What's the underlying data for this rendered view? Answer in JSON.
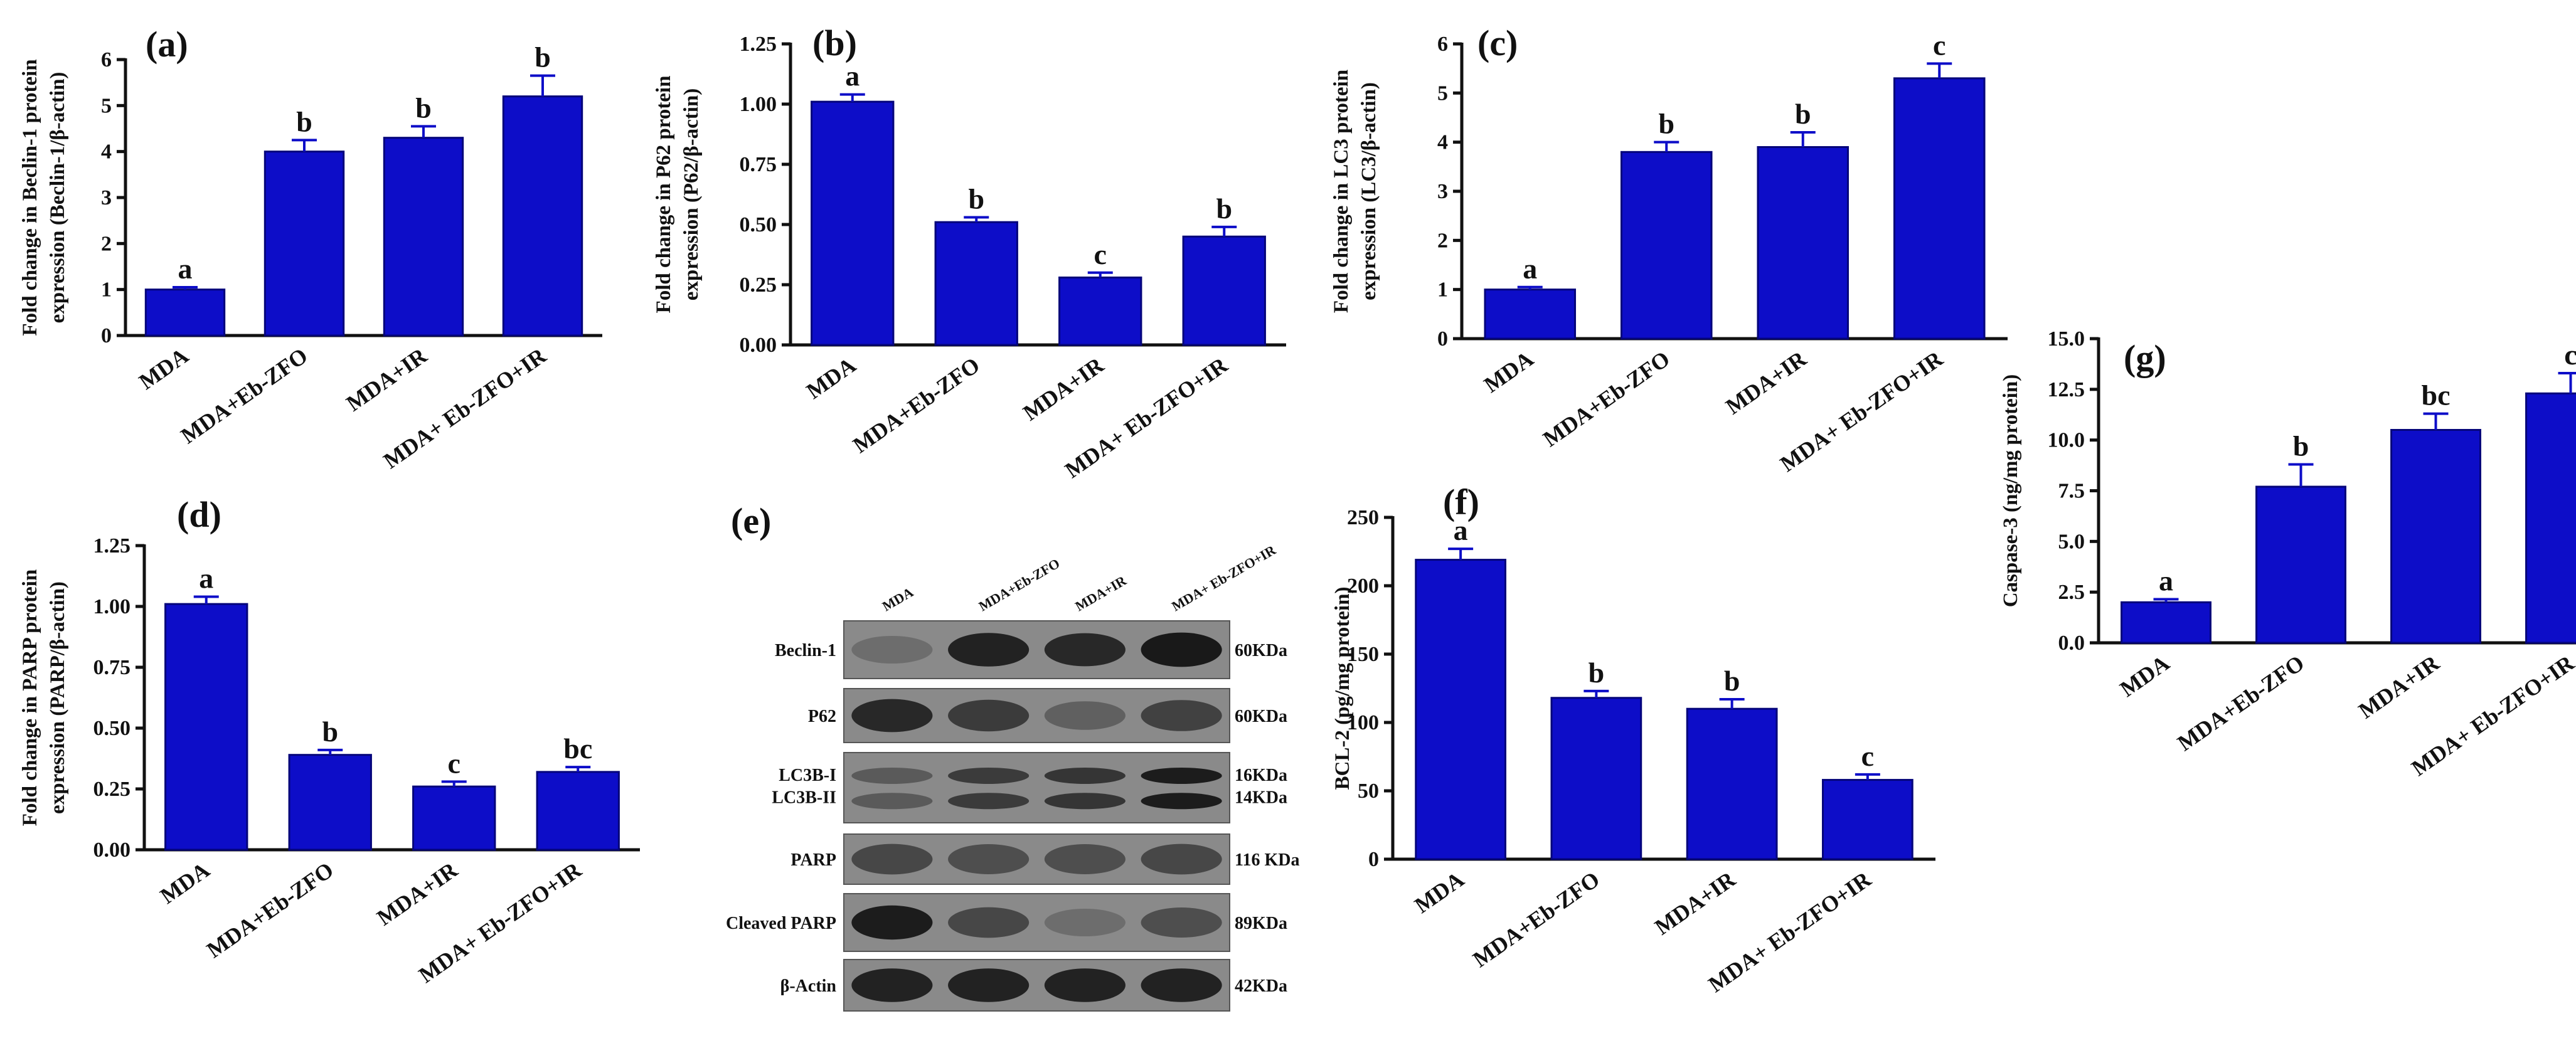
{
  "colors": {
    "bar": "#0d0dc8",
    "bar_edge": "#05057a",
    "axis": "#111111",
    "blot_bg": "#7f7f7f"
  },
  "chart_data": [
    {
      "panel": "(a)",
      "type": "bar",
      "categories": [
        "MDA",
        "MDA+Eb-ZFO",
        "MDA+IR",
        "MDA+ Eb-ZFO+IR"
      ],
      "values": [
        1.0,
        4.0,
        4.3,
        5.2
      ],
      "errors": [
        0.05,
        0.25,
        0.25,
        0.45
      ],
      "labels": [
        "a",
        "b",
        "b",
        "b"
      ],
      "ylabel": [
        "Fold change in Beclin-1 protein",
        "expression (Beclin-1/β-actin)"
      ],
      "ylim": [
        0,
        6
      ],
      "ticks": [
        "0",
        "1",
        "2",
        "3",
        "4",
        "5",
        "6"
      ]
    },
    {
      "panel": "(b)",
      "type": "bar",
      "categories": [
        "MDA",
        "MDA+Eb-ZFO",
        "MDA+IR",
        "MDA+ Eb-ZFO+IR"
      ],
      "values": [
        1.01,
        0.51,
        0.28,
        0.45
      ],
      "errors": [
        0.03,
        0.02,
        0.02,
        0.04
      ],
      "labels": [
        "a",
        "b",
        "c",
        "b"
      ],
      "ylabel": [
        "Fold change in P62 protein",
        "expression (P62/β-actin)"
      ],
      "ylim": [
        0,
        1.25
      ],
      "ticks": [
        "0.00",
        "0.25",
        "0.50",
        "0.75",
        "1.00",
        "1.25"
      ]
    },
    {
      "panel": "(c)",
      "type": "bar",
      "categories": [
        "MDA",
        "MDA+Eb-ZFO",
        "MDA+IR",
        "MDA+ Eb-ZFO+IR"
      ],
      "values": [
        1.0,
        3.8,
        3.9,
        5.3
      ],
      "errors": [
        0.05,
        0.2,
        0.3,
        0.3
      ],
      "labels": [
        "a",
        "b",
        "b",
        "c"
      ],
      "ylabel": [
        "Fold change in LC3 protein",
        "expression (LC3/β-actin)"
      ],
      "ylim": [
        0,
        6
      ],
      "ticks": [
        "0",
        "1",
        "2",
        "3",
        "4",
        "5",
        "6"
      ]
    },
    {
      "panel": "(d)",
      "type": "bar",
      "categories": [
        "MDA",
        "MDA+Eb-ZFO",
        "MDA+IR",
        "MDA+ Eb-ZFO+IR"
      ],
      "values": [
        1.01,
        0.39,
        0.26,
        0.32
      ],
      "errors": [
        0.03,
        0.02,
        0.02,
        0.02
      ],
      "labels": [
        "a",
        "b",
        "c",
        "bc"
      ],
      "ylabel": [
        "Fold change in PARP protein",
        "expression (PARP/β-actin)"
      ],
      "ylim": [
        0,
        1.25
      ],
      "ticks": [
        "0.00",
        "0.25",
        "0.50",
        "0.75",
        "1.00",
        "1.25"
      ]
    },
    {
      "panel": "(f)",
      "type": "bar",
      "categories": [
        "MDA",
        "MDA+Eb-ZFO",
        "MDA+IR",
        "MDA+ Eb-ZFO+IR"
      ],
      "values": [
        219,
        118,
        110,
        58
      ],
      "errors": [
        8,
        5,
        7,
        4
      ],
      "labels": [
        "a",
        "b",
        "b",
        "c"
      ],
      "ylabel": [
        "BCL-2 (pg/mg protein)"
      ],
      "ylim": [
        0,
        250
      ],
      "ticks": [
        "0",
        "50",
        "100",
        "150",
        "200",
        "250"
      ]
    },
    {
      "panel": "(g)",
      "type": "bar",
      "categories": [
        "MDA",
        "MDA+Eb-ZFO",
        "MDA+IR",
        "MDA+ Eb-ZFO+IR"
      ],
      "values": [
        2.0,
        7.7,
        10.5,
        12.3
      ],
      "errors": [
        0.15,
        1.1,
        0.8,
        1.0
      ],
      "labels": [
        "a",
        "b",
        "bc",
        "c"
      ],
      "ylabel": [
        "Caspase-3 (ng/mg protein)"
      ],
      "ylim": [
        0,
        15
      ],
      "ticks": [
        "0.0",
        "2.5",
        "5.0",
        "7.5",
        "10.0",
        "12.5",
        "15.0"
      ]
    }
  ],
  "blot": {
    "panel": "(e)",
    "lanes": [
      "MDA",
      "MDA+Eb-ZFO",
      "MDA+IR",
      "MDA+ Eb-ZFO+IR"
    ],
    "rows": [
      {
        "label": "Beclin-1",
        "size": "60KDa",
        "intensity": [
          0.25,
          0.85,
          0.8,
          0.92
        ]
      },
      {
        "label": "P62",
        "size": "60KDa",
        "intensity": [
          0.8,
          0.65,
          0.35,
          0.6
        ]
      },
      {
        "label": "LC3B-I",
        "label2": "LC3B-II",
        "size": "16KDa",
        "size2": "14KDa",
        "intensity": [
          0.4,
          0.65,
          0.7,
          0.9
        ]
      },
      {
        "label": "PARP",
        "size": "116 KDa",
        "intensity": [
          0.55,
          0.5,
          0.5,
          0.55
        ]
      },
      {
        "label": "Cleaved PARP",
        "size": "89KDa",
        "intensity": [
          0.9,
          0.55,
          0.25,
          0.5
        ]
      },
      {
        "label": "β-Actin",
        "size": "42KDa",
        "intensity": [
          0.85,
          0.85,
          0.85,
          0.85
        ]
      }
    ]
  }
}
